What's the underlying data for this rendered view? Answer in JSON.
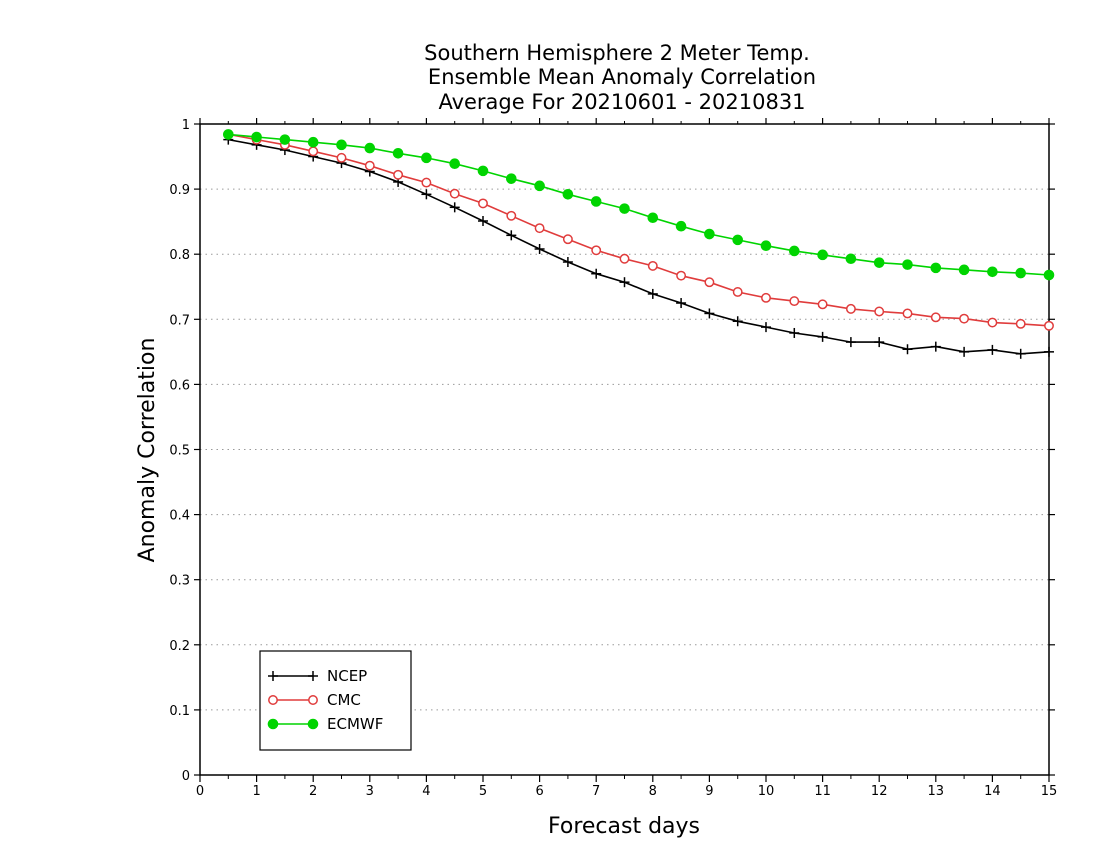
{
  "chart_data": {
    "type": "line",
    "title": [
      "Southern Hemisphere 2 Meter Temp.",
      "Ensemble Mean Anomaly Correlation",
      "Average For 20210601 - 20210831"
    ],
    "xlabel": "Forecast days",
    "ylabel": "Anomaly Correlation",
    "xlim": [
      0,
      15
    ],
    "ylim": [
      0,
      1
    ],
    "xticks": [
      0,
      1,
      2,
      3,
      4,
      5,
      6,
      7,
      8,
      9,
      10,
      11,
      12,
      13,
      14,
      15
    ],
    "yticks": [
      0,
      0.1,
      0.2,
      0.3,
      0.4,
      0.5,
      0.6,
      0.7,
      0.8,
      0.9,
      1
    ],
    "ytick_labels": [
      "0",
      "0.1",
      "0.2",
      "0.3",
      "0.4",
      "0.5",
      "0.6",
      "0.7",
      "0.8",
      "0.9",
      "1"
    ],
    "grid": "horizontal dotted",
    "legend_position": "bottom-left",
    "x": [
      0.5,
      1,
      1.5,
      2,
      2.5,
      3,
      3.5,
      4,
      4.5,
      5,
      5.5,
      6,
      6.5,
      7,
      7.5,
      8,
      8.5,
      9,
      9.5,
      10,
      10.5,
      11,
      11.5,
      12,
      12.5,
      13,
      13.5,
      14,
      14.5,
      15
    ],
    "series": [
      {
        "name": "NCEP",
        "color": "#000000",
        "marker": "plus",
        "values": [
          0.976,
          0.968,
          0.96,
          0.95,
          0.94,
          0.927,
          0.911,
          0.892,
          0.872,
          0.851,
          0.829,
          0.808,
          0.788,
          0.77,
          0.757,
          0.739,
          0.725,
          0.709,
          0.697,
          0.688,
          0.679,
          0.673,
          0.665,
          0.665,
          0.654,
          0.658,
          0.65,
          0.653,
          0.647,
          0.65
        ]
      },
      {
        "name": "CMC",
        "color": "#e03c3c",
        "marker": "open-circle",
        "values": [
          0.984,
          0.976,
          0.968,
          0.958,
          0.948,
          0.936,
          0.922,
          0.91,
          0.893,
          0.878,
          0.859,
          0.84,
          0.823,
          0.806,
          0.793,
          0.782,
          0.767,
          0.757,
          0.742,
          0.733,
          0.728,
          0.723,
          0.716,
          0.712,
          0.709,
          0.703,
          0.701,
          0.695,
          0.693,
          0.69
        ]
      },
      {
        "name": "ECMWF",
        "color": "#00d400",
        "marker": "filled-circle",
        "values": [
          0.984,
          0.98,
          0.976,
          0.972,
          0.968,
          0.963,
          0.955,
          0.948,
          0.939,
          0.928,
          0.916,
          0.905,
          0.892,
          0.881,
          0.87,
          0.856,
          0.843,
          0.831,
          0.822,
          0.813,
          0.805,
          0.799,
          0.793,
          0.787,
          0.784,
          0.779,
          0.776,
          0.773,
          0.771,
          0.768
        ]
      }
    ]
  }
}
